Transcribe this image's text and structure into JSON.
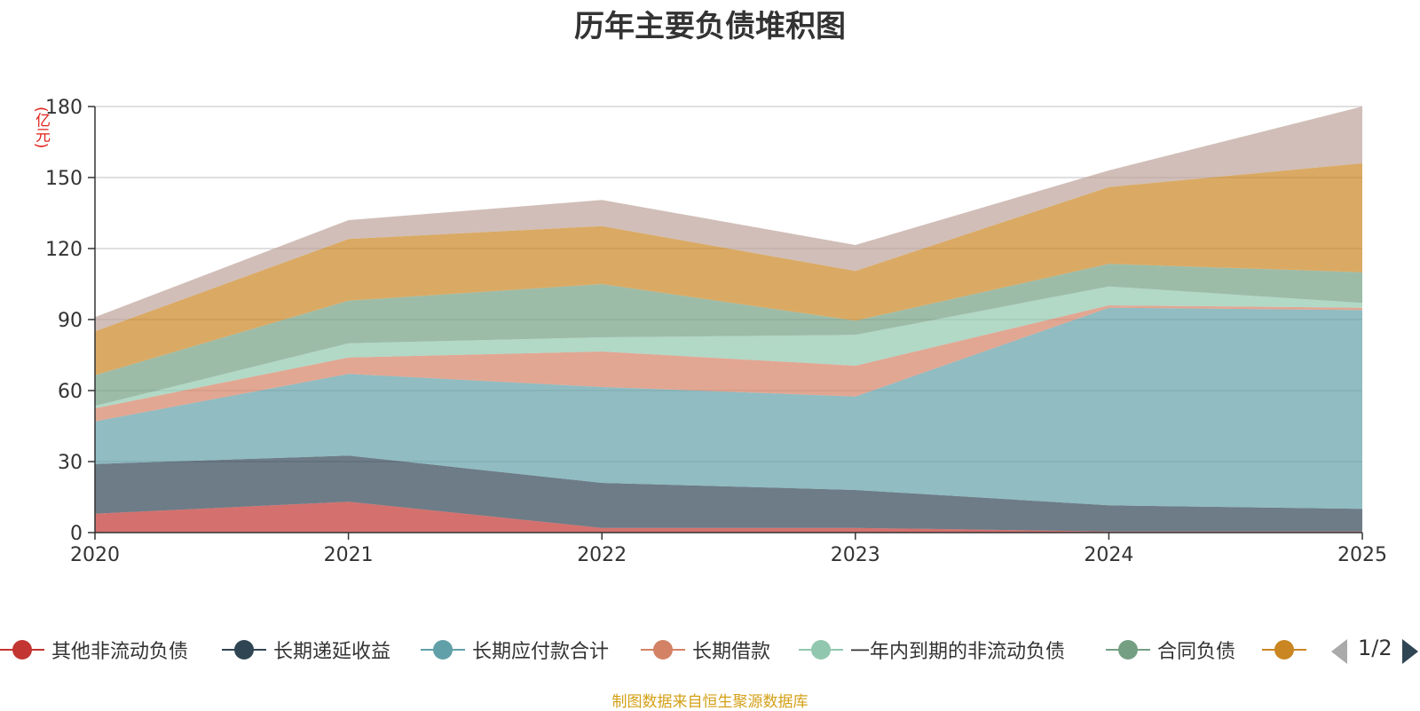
{
  "chart_data": {
    "type": "area",
    "stacked": true,
    "title": "历年主要负债堆积图",
    "unit_label": "(亿元)",
    "xlabel": "",
    "ylabel": "(亿元)",
    "categories": [
      "2020",
      "2021",
      "2022",
      "2023",
      "2024",
      "2025"
    ],
    "yticks": [
      0,
      30,
      60,
      90,
      120,
      150,
      180
    ],
    "ylim": [
      0,
      180
    ],
    "grid": true,
    "series": [
      {
        "name": "其他非流动负债",
        "color": "#c23531",
        "values": [
          8,
          13,
          2,
          2,
          0.5,
          0.5
        ]
      },
      {
        "name": "长期递延收益",
        "color": "#2f4554",
        "values": [
          21,
          19.5,
          19,
          16,
          11,
          9.5
        ]
      },
      {
        "name": "长期应付款合计",
        "color": "#61a0a8",
        "values": [
          18,
          34.5,
          40.5,
          39.5,
          83.5,
          84
        ]
      },
      {
        "name": "长期借款",
        "color": "#d48265",
        "values": [
          5.5,
          7,
          15,
          13,
          1,
          1
        ]
      },
      {
        "name": "一年内到期的非流动负债",
        "color": "#91c7ae",
        "values": [
          1,
          6,
          6,
          13,
          8,
          2
        ]
      },
      {
        "name": "合同负债",
        "color": "#749f83",
        "values": [
          13,
          18,
          22.5,
          6,
          9.5,
          13
        ]
      },
      {
        "name": "",
        "color": "#ca8622",
        "values": [
          18.5,
          26,
          24.5,
          21,
          32.5,
          46
        ]
      },
      {
        "name": "",
        "color": "#bda29a",
        "values": [
          6,
          8,
          11,
          11,
          7,
          24
        ]
      }
    ]
  },
  "legend": {
    "items": [
      {
        "name": "其他非流动负债",
        "color": "#c23531"
      },
      {
        "name": "长期递延收益",
        "color": "#2f4554"
      },
      {
        "name": "长期应付款合计",
        "color": "#61a0a8"
      },
      {
        "name": "长期借款",
        "color": "#d48265"
      },
      {
        "name": "一年内到期的非流动负债",
        "color": "#91c7ae"
      },
      {
        "name": "合同负债",
        "color": "#749f83"
      },
      {
        "name": "",
        "color": "#ca8622"
      }
    ],
    "page": "1/2"
  },
  "source_note": "制图数据来自恒生聚源数据库"
}
